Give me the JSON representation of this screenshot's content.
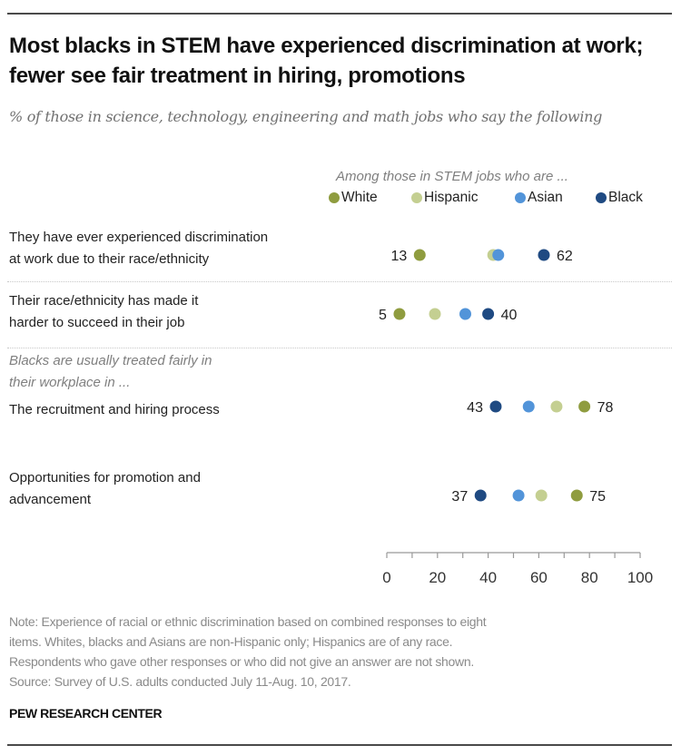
{
  "chart_data": {
    "type": "scatter",
    "style": "dot-plot",
    "title": "Most blacks in STEM have experienced discrimination at work; fewer see fair treatment in hiring, promotions",
    "subtitle": "% of those in science, technology, engineering and math jobs who say the following",
    "legend_title": "Among those in STEM jobs who are ...",
    "legend_placement": "top-right",
    "series": [
      {
        "name": "White",
        "color": "#8f9c3f",
        "values": [
          13,
          5,
          78,
          75
        ]
      },
      {
        "name": "Hispanic",
        "color": "#c4cf91",
        "values": [
          42,
          19,
          67,
          61
        ]
      },
      {
        "name": "Asian",
        "color": "#5294d9",
        "values": [
          44,
          31,
          56,
          52
        ]
      },
      {
        "name": "Black",
        "color": "#1f4a82",
        "values": [
          62,
          40,
          43,
          37
        ]
      }
    ],
    "categories": [
      "They have ever experienced discrimination at work due to their race/ethnicity",
      "Their race/ethnicity has made it harder to succeed in their job",
      "The recruitment and hiring process",
      "Opportunities for promotion and advancement"
    ],
    "rows": [
      {
        "line1": "They have ever experienced discrimination",
        "line2": "at work due to their race/ethnicity",
        "low_label": "13",
        "high_label": "62"
      },
      {
        "line1": "Their race/ethnicity has made it",
        "line2": "harder to succeed in their job",
        "low_label": "5",
        "high_label": "40"
      },
      {
        "line1": "The recruitment and hiring process",
        "line2": "",
        "low_label": "43",
        "high_label": "78"
      },
      {
        "line1": "Opportunities for promotion and",
        "line2": "advancement",
        "low_label": "37",
        "high_label": "75"
      }
    ],
    "group_label_line1": "Blacks are usually treated fairly in",
    "group_label_line2": "their workplace in ...",
    "xlim": [
      0,
      100
    ],
    "xticks": [
      0,
      20,
      40,
      60,
      80,
      100
    ],
    "xtick_labels": [
      "0",
      "20",
      "40",
      "60",
      "80",
      "100"
    ],
    "grid": false
  },
  "note": {
    "line1": "Note: Experience of racial or ethnic discrimination based on combined responses to eight",
    "line2": "items. Whites, blacks and Asians are non-Hispanic only; Hispanics are of any race.",
    "line3": "Respondents who gave other responses or who did not give an answer are not shown.",
    "line4": "Source: Survey of U.S. adults conducted July 11-Aug. 10, 2017."
  },
  "brand": "PEW RESEARCH CENTER"
}
